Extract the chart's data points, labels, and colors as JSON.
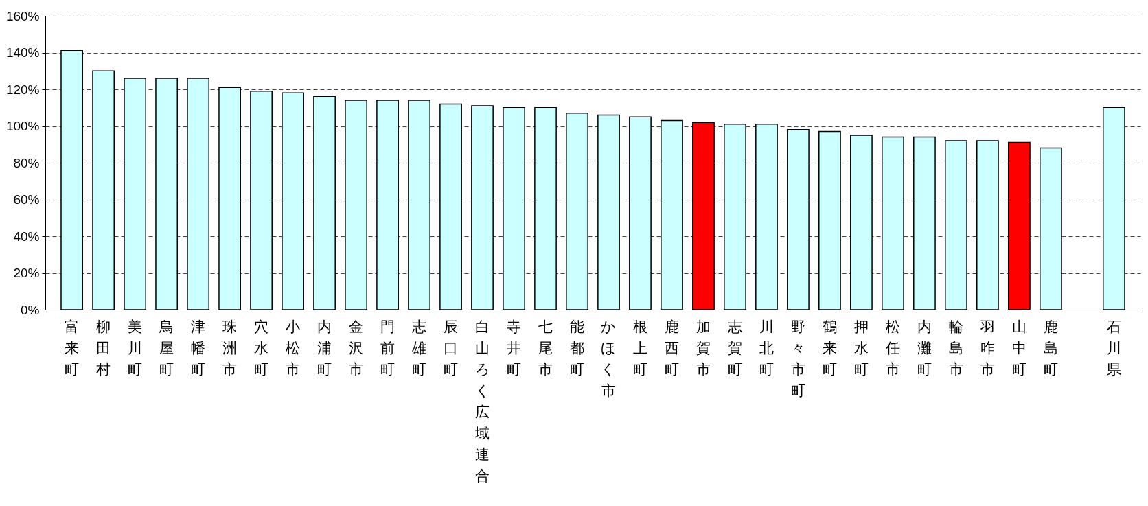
{
  "chart_data": {
    "type": "bar",
    "categories": [
      "富来町",
      "柳田村",
      "美川町",
      "鳥屋町",
      "津幡町",
      "珠洲市",
      "穴水町",
      "小松市",
      "内浦町",
      "金沢市",
      "門前町",
      "志雄町",
      "辰口町",
      "白山ろく広域連合",
      "寺井町",
      "七尾市",
      "能都町",
      "かほく市",
      "根上町",
      "鹿西町",
      "加賀市",
      "志賀町",
      "川北町",
      "野々市町",
      "鶴来町",
      "押水町",
      "松任市",
      "内灘町",
      "輪島市",
      "羽咋市",
      "山中町",
      "鹿島町",
      null,
      "石川県"
    ],
    "values": [
      141,
      130,
      126,
      126,
      126,
      121,
      119,
      118,
      116,
      114,
      114,
      114,
      112,
      111,
      110,
      110,
      107,
      106,
      105,
      103,
      102,
      101,
      101,
      98,
      97,
      95,
      94,
      94,
      92,
      92,
      91,
      88,
      null,
      110
    ],
    "colors": [
      "#ccffff",
      "#ccffff",
      "#ccffff",
      "#ccffff",
      "#ccffff",
      "#ccffff",
      "#ccffff",
      "#ccffff",
      "#ccffff",
      "#ccffff",
      "#ccffff",
      "#ccffff",
      "#ccffff",
      "#ccffff",
      "#ccffff",
      "#ccffff",
      "#ccffff",
      "#ccffff",
      "#ccffff",
      "#ccffff",
      "#ff0000",
      "#ccffff",
      "#ccffff",
      "#ccffff",
      "#ccffff",
      "#ccffff",
      "#ccffff",
      "#ccffff",
      "#ccffff",
      "#ccffff",
      "#ff0000",
      "#ccffff",
      "#ccffff",
      "#ccffff"
    ],
    "ylim": [
      0,
      160
    ],
    "yticks": [
      {
        "value": 0,
        "label": "0%"
      },
      {
        "value": 20,
        "label": "20%"
      },
      {
        "value": 40,
        "label": "40%"
      },
      {
        "value": 60,
        "label": "60%"
      },
      {
        "value": 80,
        "label": "80%"
      },
      {
        "value": 100,
        "label": "100%"
      },
      {
        "value": 120,
        "label": "120%"
      },
      {
        "value": 140,
        "label": "140%"
      },
      {
        "value": 160,
        "label": "160%"
      }
    ],
    "grid": "y"
  }
}
